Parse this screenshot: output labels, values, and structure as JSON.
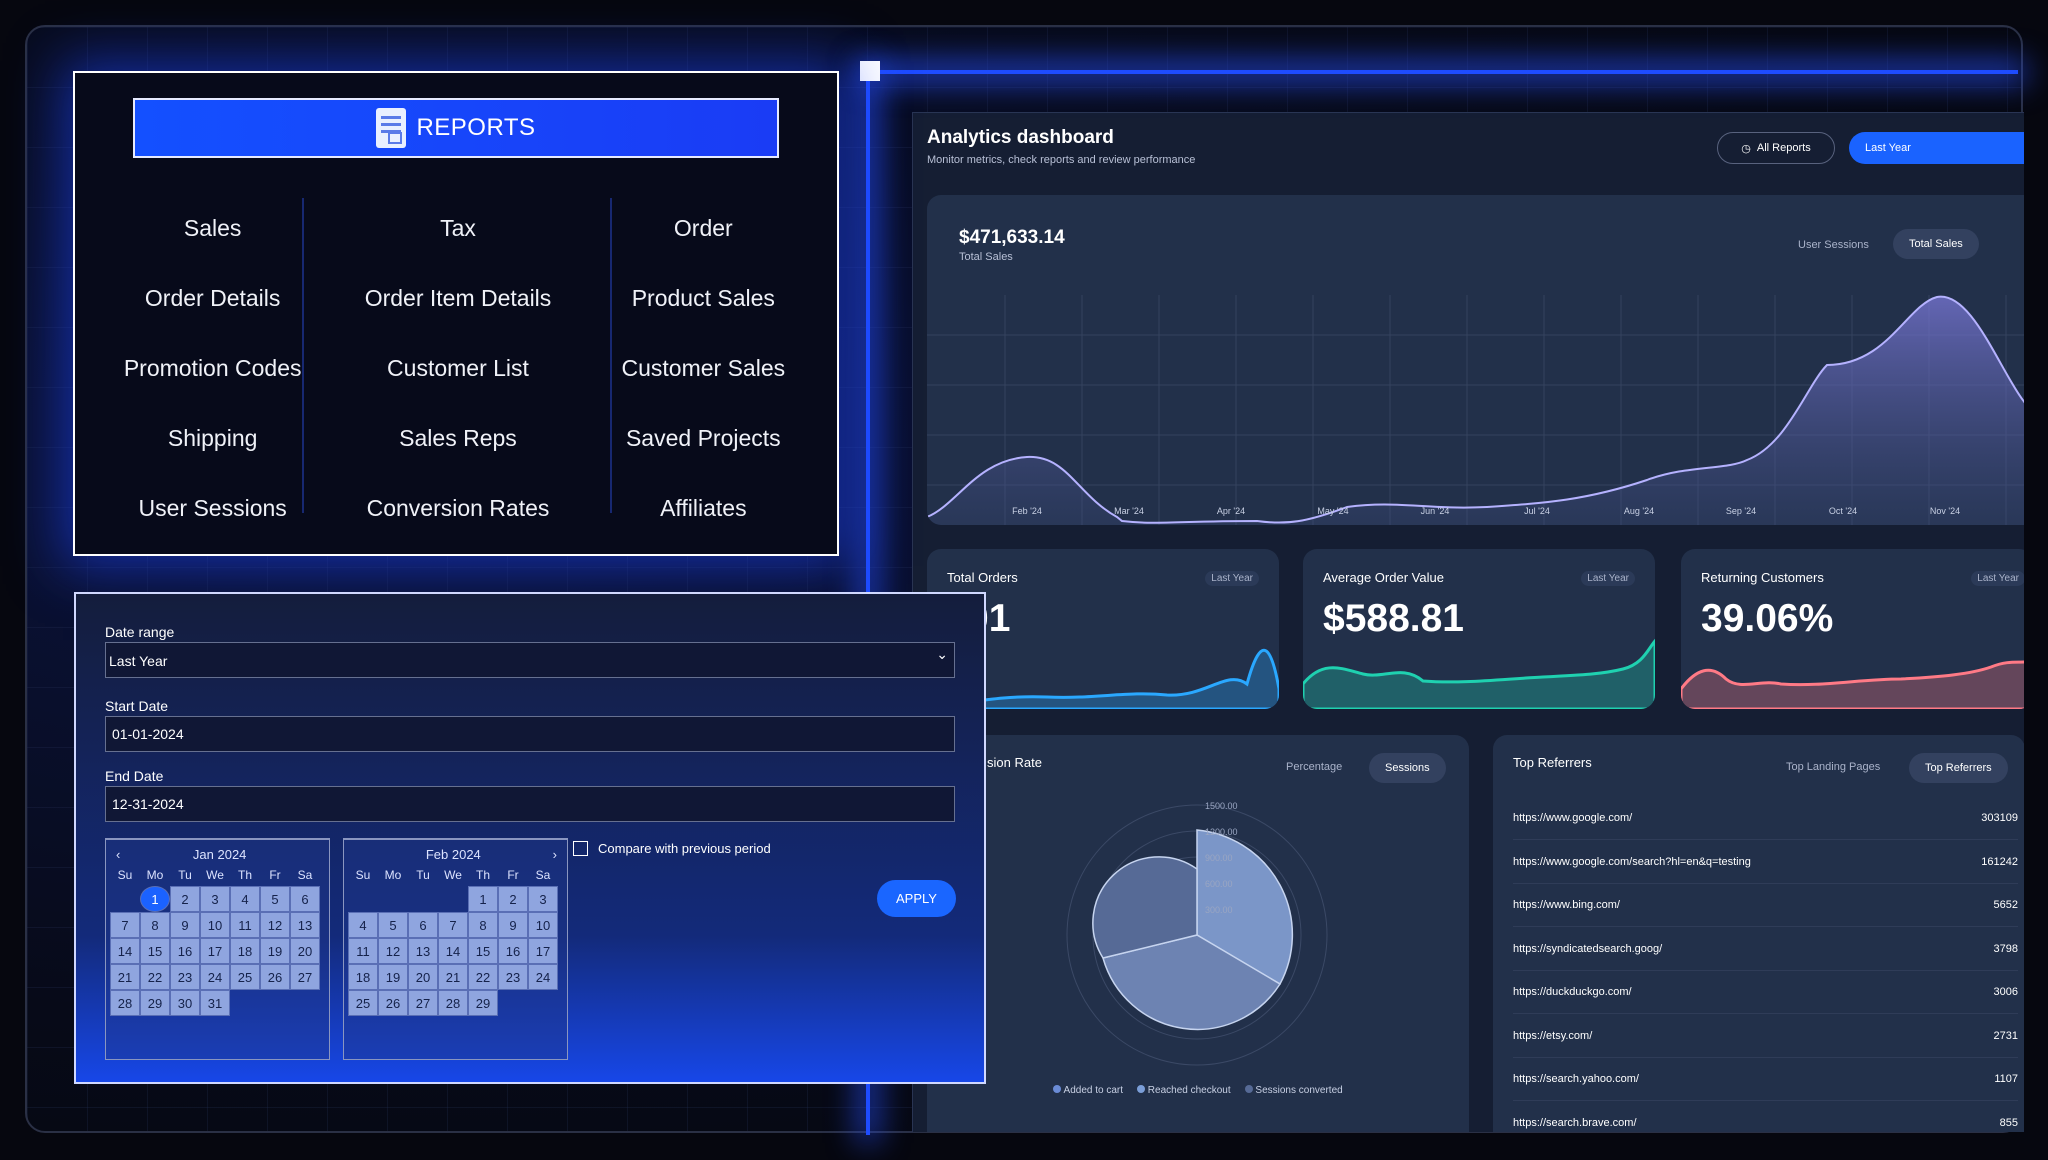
{
  "reports": {
    "title": "REPORTS",
    "items": [
      "Sales",
      "Tax",
      "Order",
      "Order Details",
      "Order Item Details",
      "Product Sales",
      "Promotion Codes",
      "Customer List",
      "Customer Sales",
      "Shipping",
      "Sales Reps",
      "Saved Projects",
      "User Sessions",
      "Conversion Rates",
      "Affiliates"
    ]
  },
  "date_panel": {
    "range_label": "Date range",
    "range_value": "Last Year",
    "start_label": "Start Date",
    "start_value": "01-01-2024",
    "end_label": "End Date",
    "end_value": "12-31-2024",
    "compare_label": "Compare with previous period",
    "apply_label": "APPLY",
    "dow": [
      "Su",
      "Mo",
      "Tu",
      "We",
      "Th",
      "Fr",
      "Sa"
    ],
    "cal1": {
      "title": "Jan 2024",
      "prev": "‹",
      "offset": 1,
      "days": 31,
      "selected": 1
    },
    "cal2": {
      "title": "Feb 2024",
      "next": "›",
      "offset": 4,
      "days": 29
    }
  },
  "dashboard": {
    "title": "Analytics dashboard",
    "subtitle": "Monitor metrics, check reports and review performance",
    "all_reports": "All Reports",
    "last_year": "Last Year",
    "sales": {
      "value": "$471,633.14",
      "label": "Total Sales",
      "tab_inactive": "User Sessions",
      "tab_active": "Total Sales",
      "months": [
        "Feb '24",
        "Mar '24",
        "Apr '24",
        "May '24",
        "Jun '24",
        "Jul '24",
        "Aug '24",
        "Sep '24",
        "Oct '24",
        "Nov '24"
      ]
    },
    "kpis": [
      {
        "title": "Total Orders",
        "tag": "Last Year",
        "value": "01",
        "color": "#2aa8ff"
      },
      {
        "title": "Average Order Value",
        "tag": "Last Year",
        "value": "$588.81",
        "color": "#1fd1b0"
      },
      {
        "title": "Returning Customers",
        "tag": "Last Year",
        "value": "39.06%",
        "color": "#ff7a86"
      }
    ],
    "conversion": {
      "title": "sion Rate",
      "tab_inactive": "Percentage",
      "tab_active": "Sessions",
      "ticks": [
        "1500.00",
        "1200.00",
        "900.00",
        "600.00",
        "300.00"
      ],
      "legend": [
        "Added to cart",
        "Reached checkout",
        "Sessions converted"
      ]
    },
    "referrers": {
      "title": "Top Referrers",
      "tab_inactive": "Top Landing Pages",
      "tab_active": "Top Referrers",
      "rows": [
        {
          "url": "https://www.google.com/",
          "count": "303109"
        },
        {
          "url": "https://www.google.com/search?hl=en&q=testing",
          "count": "161242"
        },
        {
          "url": "https://www.bing.com/",
          "count": "5652"
        },
        {
          "url": "https://syndicatedsearch.goog/",
          "count": "3798"
        },
        {
          "url": "https://duckduckgo.com/",
          "count": "3006"
        },
        {
          "url": "https://etsy.com/",
          "count": "2731"
        },
        {
          "url": "https://search.yahoo.com/",
          "count": "1107"
        },
        {
          "url": "https://search.brave.com/",
          "count": "855"
        }
      ]
    }
  }
}
